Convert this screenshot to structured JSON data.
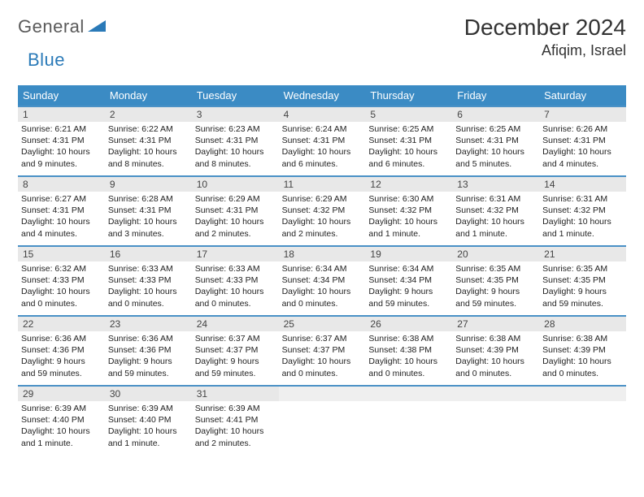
{
  "brand": {
    "general": "General",
    "blue": "Blue"
  },
  "title": "December 2024",
  "location": "Afiqim, Israel",
  "colors": {
    "header_bg": "#3b8bc4",
    "rule": "#4a91c6",
    "daynum_bg": "#e8e8e8",
    "text": "#333333",
    "logo_gray": "#5a5a5a",
    "logo_blue": "#2a7ab8"
  },
  "day_headers": [
    "Sunday",
    "Monday",
    "Tuesday",
    "Wednesday",
    "Thursday",
    "Friday",
    "Saturday"
  ],
  "weeks": [
    [
      {
        "n": "1",
        "sunrise": "6:21 AM",
        "sunset": "4:31 PM",
        "daylight": "10 hours and 9 minutes."
      },
      {
        "n": "2",
        "sunrise": "6:22 AM",
        "sunset": "4:31 PM",
        "daylight": "10 hours and 8 minutes."
      },
      {
        "n": "3",
        "sunrise": "6:23 AM",
        "sunset": "4:31 PM",
        "daylight": "10 hours and 8 minutes."
      },
      {
        "n": "4",
        "sunrise": "6:24 AM",
        "sunset": "4:31 PM",
        "daylight": "10 hours and 6 minutes."
      },
      {
        "n": "5",
        "sunrise": "6:25 AM",
        "sunset": "4:31 PM",
        "daylight": "10 hours and 6 minutes."
      },
      {
        "n": "6",
        "sunrise": "6:25 AM",
        "sunset": "4:31 PM",
        "daylight": "10 hours and 5 minutes."
      },
      {
        "n": "7",
        "sunrise": "6:26 AM",
        "sunset": "4:31 PM",
        "daylight": "10 hours and 4 minutes."
      }
    ],
    [
      {
        "n": "8",
        "sunrise": "6:27 AM",
        "sunset": "4:31 PM",
        "daylight": "10 hours and 4 minutes."
      },
      {
        "n": "9",
        "sunrise": "6:28 AM",
        "sunset": "4:31 PM",
        "daylight": "10 hours and 3 minutes."
      },
      {
        "n": "10",
        "sunrise": "6:29 AM",
        "sunset": "4:31 PM",
        "daylight": "10 hours and 2 minutes."
      },
      {
        "n": "11",
        "sunrise": "6:29 AM",
        "sunset": "4:32 PM",
        "daylight": "10 hours and 2 minutes."
      },
      {
        "n": "12",
        "sunrise": "6:30 AM",
        "sunset": "4:32 PM",
        "daylight": "10 hours and 1 minute."
      },
      {
        "n": "13",
        "sunrise": "6:31 AM",
        "sunset": "4:32 PM",
        "daylight": "10 hours and 1 minute."
      },
      {
        "n": "14",
        "sunrise": "6:31 AM",
        "sunset": "4:32 PM",
        "daylight": "10 hours and 1 minute."
      }
    ],
    [
      {
        "n": "15",
        "sunrise": "6:32 AM",
        "sunset": "4:33 PM",
        "daylight": "10 hours and 0 minutes."
      },
      {
        "n": "16",
        "sunrise": "6:33 AM",
        "sunset": "4:33 PM",
        "daylight": "10 hours and 0 minutes."
      },
      {
        "n": "17",
        "sunrise": "6:33 AM",
        "sunset": "4:33 PM",
        "daylight": "10 hours and 0 minutes."
      },
      {
        "n": "18",
        "sunrise": "6:34 AM",
        "sunset": "4:34 PM",
        "daylight": "10 hours and 0 minutes."
      },
      {
        "n": "19",
        "sunrise": "6:34 AM",
        "sunset": "4:34 PM",
        "daylight": "9 hours and 59 minutes."
      },
      {
        "n": "20",
        "sunrise": "6:35 AM",
        "sunset": "4:35 PM",
        "daylight": "9 hours and 59 minutes."
      },
      {
        "n": "21",
        "sunrise": "6:35 AM",
        "sunset": "4:35 PM",
        "daylight": "9 hours and 59 minutes."
      }
    ],
    [
      {
        "n": "22",
        "sunrise": "6:36 AM",
        "sunset": "4:36 PM",
        "daylight": "9 hours and 59 minutes."
      },
      {
        "n": "23",
        "sunrise": "6:36 AM",
        "sunset": "4:36 PM",
        "daylight": "9 hours and 59 minutes."
      },
      {
        "n": "24",
        "sunrise": "6:37 AM",
        "sunset": "4:37 PM",
        "daylight": "9 hours and 59 minutes."
      },
      {
        "n": "25",
        "sunrise": "6:37 AM",
        "sunset": "4:37 PM",
        "daylight": "10 hours and 0 minutes."
      },
      {
        "n": "26",
        "sunrise": "6:38 AM",
        "sunset": "4:38 PM",
        "daylight": "10 hours and 0 minutes."
      },
      {
        "n": "27",
        "sunrise": "6:38 AM",
        "sunset": "4:39 PM",
        "daylight": "10 hours and 0 minutes."
      },
      {
        "n": "28",
        "sunrise": "6:38 AM",
        "sunset": "4:39 PM",
        "daylight": "10 hours and 0 minutes."
      }
    ],
    [
      {
        "n": "29",
        "sunrise": "6:39 AM",
        "sunset": "4:40 PM",
        "daylight": "10 hours and 1 minute."
      },
      {
        "n": "30",
        "sunrise": "6:39 AM",
        "sunset": "4:40 PM",
        "daylight": "10 hours and 1 minute."
      },
      {
        "n": "31",
        "sunrise": "6:39 AM",
        "sunset": "4:41 PM",
        "daylight": "10 hours and 2 minutes."
      },
      {
        "blank": true
      },
      {
        "blank": true
      },
      {
        "blank": true
      },
      {
        "blank": true
      }
    ]
  ],
  "labels": {
    "sunrise": "Sunrise: ",
    "sunset": "Sunset: ",
    "daylight": "Daylight: "
  }
}
